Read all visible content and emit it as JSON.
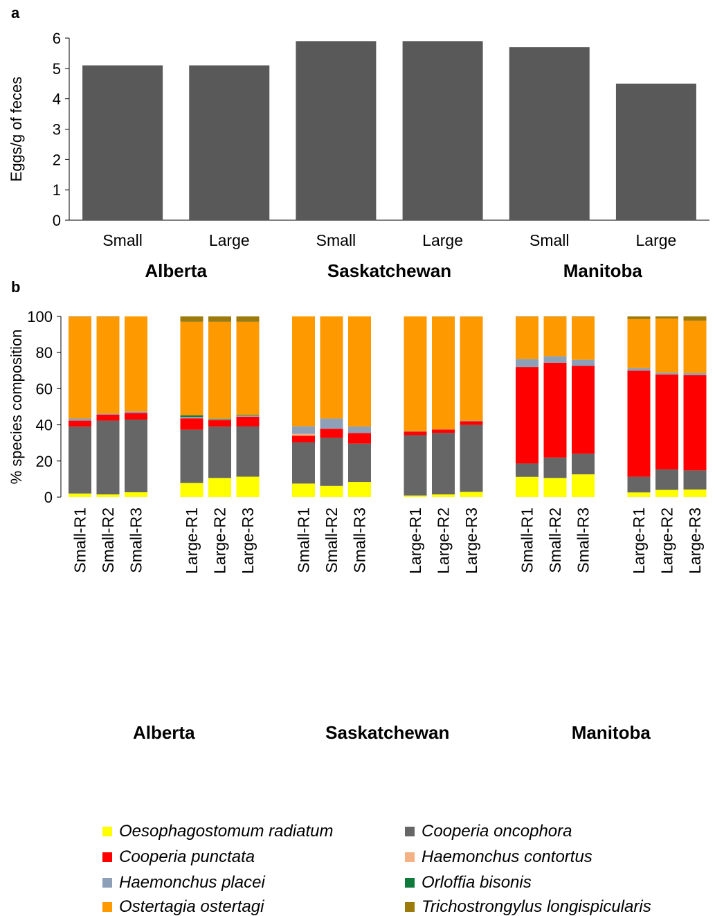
{
  "chart_data": [
    {
      "panel": "a",
      "type": "bar",
      "ylabel": "Eggs/g of feces",
      "ylim": [
        0,
        6
      ],
      "yticks": [
        0,
        1,
        2,
        3,
        4,
        5,
        6
      ],
      "groups": [
        "Alberta",
        "Saskatchewan",
        "Manitoba"
      ],
      "categories": [
        "Small",
        "Large",
        "Small",
        "Large",
        "Small",
        "Large"
      ],
      "values": [
        5.1,
        5.1,
        5.9,
        5.9,
        5.7,
        4.5
      ],
      "bar_color": "#595959"
    },
    {
      "panel": "b",
      "type": "bar",
      "stacked": true,
      "ylabel": "% species composition",
      "ylim": [
        0,
        100
      ],
      "yticks": [
        0,
        20,
        40,
        60,
        80,
        100
      ],
      "groups": [
        "Alberta",
        "Saskatchewan",
        "Manitoba"
      ],
      "categories": [
        "Small-R1",
        "Small-R2",
        "Small-R3",
        "Large-R1",
        "Large-R2",
        "Large-R3",
        "Small-R1",
        "Small-R2",
        "Small-R3",
        "Large-R1",
        "Large-R2",
        "Large-R3",
        "Small-R1",
        "Small-R2",
        "Small-R3",
        "Large-R1",
        "Large-R2",
        "Large-R3"
      ],
      "series": [
        {
          "name": "Oesophagostomum radiatum",
          "color": "#ffff00",
          "values": [
            2,
            1.5,
            2.7,
            7.8,
            10.6,
            11.3,
            7.5,
            6.2,
            8.4,
            0.9,
            1.5,
            2.9,
            11.2,
            10.6,
            12.6,
            2.6,
            4,
            4.2
          ]
        },
        {
          "name": "Cooperia oncophora",
          "color": "#666666",
          "values": [
            37,
            40.8,
            40.2,
            29.5,
            28.4,
            27.8,
            22.8,
            26.6,
            21.2,
            33.4,
            34,
            37,
            7.4,
            11.3,
            11.4,
            8.6,
            11.3,
            10.6
          ]
        },
        {
          "name": "Cooperia punctata",
          "color": "#ff0000",
          "values": [
            3.3,
            3.4,
            3.7,
            6.3,
            3.6,
            5.4,
            3.7,
            5,
            5.9,
            1.9,
            1.9,
            2.1,
            53.4,
            52.5,
            48.6,
            58.8,
            52.6,
            52.7
          ]
        },
        {
          "name": "Haemonchus contortus",
          "color": "#f4b183",
          "values": [
            0,
            0,
            0,
            0,
            0,
            0,
            1,
            0,
            0,
            0,
            0,
            0,
            0,
            0,
            0,
            0,
            0,
            0
          ]
        },
        {
          "name": "Haemonchus placei",
          "color": "#8ea0b8",
          "values": [
            1.2,
            0.5,
            0.8,
            0.8,
            0.5,
            0.6,
            4.2,
            5.7,
            3.6,
            0.2,
            0.1,
            0.3,
            4.4,
            3.6,
            3.4,
            1.4,
            1,
            1.1
          ]
        },
        {
          "name": "Orloffia bisonis",
          "color": "#0f7a3b",
          "values": [
            0,
            0,
            0,
            0.8,
            0.3,
            0.3,
            0,
            0,
            0,
            0,
            0,
            0,
            0,
            0,
            0,
            0,
            0,
            0
          ]
        },
        {
          "name": "Ostertagia ostertagi",
          "color": "#ff9900",
          "values": [
            56.3,
            53.6,
            52.6,
            51.8,
            53.6,
            51.6,
            60.8,
            56.5,
            60.9,
            63.6,
            62.4,
            57.6,
            23.4,
            21.8,
            23.8,
            27.1,
            29.9,
            29
          ]
        },
        {
          "name": "Trichostrongylus longispicularis",
          "color": "#9c7a0c",
          "values": [
            0.2,
            0.2,
            0,
            3,
            3,
            3,
            0,
            0,
            0,
            0,
            0.1,
            0.1,
            0.2,
            0.2,
            0.2,
            1.5,
            1.2,
            2.4
          ]
        }
      ]
    }
  ],
  "labels": {
    "panel_a": "a",
    "panel_b": "b"
  }
}
